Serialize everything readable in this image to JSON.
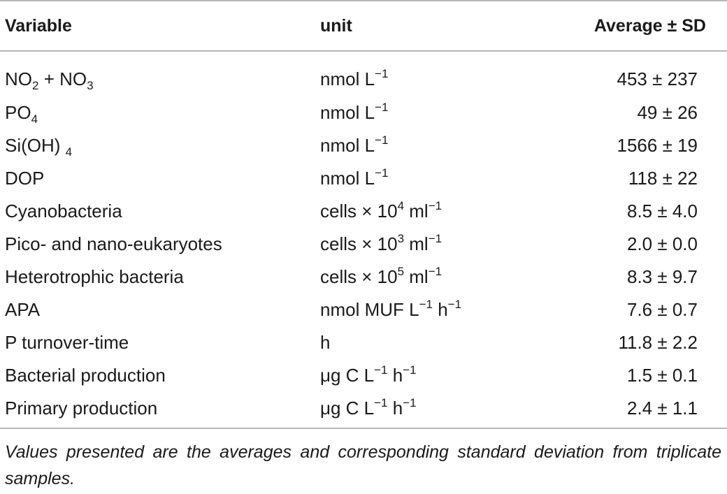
{
  "table": {
    "headers": [
      "Variable",
      "unit",
      "Average ± SD"
    ],
    "rows": [
      {
        "variable": [
          {
            "t": "NO"
          },
          {
            "sub": "2"
          },
          {
            "t": " + NO"
          },
          {
            "sub": "3"
          }
        ],
        "unit": [
          {
            "t": "nmol L"
          },
          {
            "sup": "−1"
          }
        ],
        "value": "453 ± 237"
      },
      {
        "variable": [
          {
            "t": "PO"
          },
          {
            "sub": "4"
          }
        ],
        "unit": [
          {
            "t": "nmol L"
          },
          {
            "sup": "−1"
          }
        ],
        "value": "49 ± 26"
      },
      {
        "variable": [
          {
            "t": "Si(OH) "
          },
          {
            "sub": "4"
          }
        ],
        "unit": [
          {
            "t": "nmol L"
          },
          {
            "sup": "−1"
          }
        ],
        "value": "1566 ± 19"
      },
      {
        "variable": [
          {
            "t": "DOP"
          }
        ],
        "unit": [
          {
            "t": "nmol L"
          },
          {
            "sup": "−1"
          }
        ],
        "value": "118 ± 22"
      },
      {
        "variable": [
          {
            "t": "Cyanobacteria"
          }
        ],
        "unit": [
          {
            "t": "cells × 10"
          },
          {
            "sup": "4"
          },
          {
            "t": " ml"
          },
          {
            "sup": "−1"
          }
        ],
        "value": "8.5 ± 4.0"
      },
      {
        "variable": [
          {
            "t": "Pico- and nano-eukaryotes"
          }
        ],
        "unit": [
          {
            "t": "cells × 10"
          },
          {
            "sup": "3"
          },
          {
            "t": " ml"
          },
          {
            "sup": "−1"
          }
        ],
        "value": "2.0 ± 0.0"
      },
      {
        "variable": [
          {
            "t": "Heterotrophic bacteria"
          }
        ],
        "unit": [
          {
            "t": "cells × 10"
          },
          {
            "sup": "5"
          },
          {
            "t": " ml"
          },
          {
            "sup": "−1"
          }
        ],
        "value": "8.3 ± 9.7"
      },
      {
        "variable": [
          {
            "t": "APA"
          }
        ],
        "unit": [
          {
            "t": "nmol MUF L"
          },
          {
            "sup": "−1"
          },
          {
            "t": " h"
          },
          {
            "sup": "−1"
          }
        ],
        "value": "7.6 ± 0.7"
      },
      {
        "variable": [
          {
            "t": "P turnover-time"
          }
        ],
        "unit": [
          {
            "t": "h"
          }
        ],
        "value": "11.8 ± 2.2"
      },
      {
        "variable": [
          {
            "t": "Bacterial production"
          }
        ],
        "unit": [
          {
            "t": "μg C L"
          },
          {
            "sup": "−1"
          },
          {
            "t": " h"
          },
          {
            "sup": "−1"
          }
        ],
        "value": "1.5 ± 0.1"
      },
      {
        "variable": [
          {
            "t": "Primary production"
          }
        ],
        "unit": [
          {
            "t": "μg C L"
          },
          {
            "sup": "−1"
          },
          {
            "t": " h"
          },
          {
            "sup": "−1"
          }
        ],
        "value": "2.4 ± 1.1"
      }
    ]
  },
  "footnote": "Values presented are the averages and corresponding standard deviation from triplicate samples."
}
